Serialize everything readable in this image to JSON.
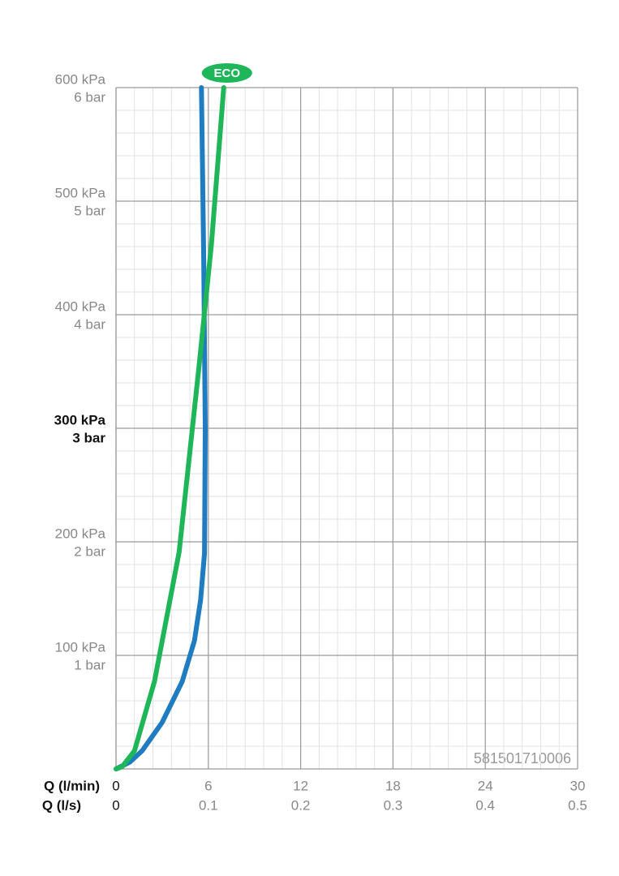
{
  "chart_data": {
    "type": "line",
    "xlabel": "Q (l/min)",
    "x2label": "Q (l/s)",
    "xlim": [
      0,
      30
    ],
    "xticks": [
      0,
      6,
      12,
      18,
      24,
      30
    ],
    "x2lim": [
      0,
      0.5
    ],
    "x2ticks": [
      0,
      0.1,
      0.2,
      0.3,
      0.4,
      0.5
    ],
    "ylim": [
      0,
      600
    ],
    "yticks": [
      {
        "value": 100,
        "label": "100 kPa"
      },
      {
        "value": 200,
        "label": "200 kPa"
      },
      {
        "value": 300,
        "label": "300 kPa"
      },
      {
        "value": 400,
        "label": "400 kPa"
      },
      {
        "value": 500,
        "label": "500 kPa"
      },
      {
        "value": 600,
        "label": "600 kPa"
      }
    ],
    "y2lim": [
      0,
      6
    ],
    "y2ticks": [
      {
        "value": 1,
        "label": "1 bar"
      },
      {
        "value": 2,
        "label": "2 bar"
      },
      {
        "value": 3,
        "label": "3 bar"
      },
      {
        "value": 4,
        "label": "4 bar"
      },
      {
        "value": 5,
        "label": "5 bar"
      },
      {
        "value": 6,
        "label": "6 bar"
      }
    ],
    "bold_ytick": 300,
    "grid": true,
    "annotation": "581501710006",
    "series": [
      {
        "color": "#1f7cc1",
        "x": [
          0,
          0.9,
          1.7,
          3.0,
          4.3,
          5.1,
          5.5,
          5.75,
          5.8,
          5.7,
          5.55
        ],
        "values": [
          0,
          6,
          16,
          41,
          77,
          113,
          149,
          190,
          300,
          450,
          600
        ]
      },
      {
        "color": "#1fb65a",
        "badge": "ECO",
        "x": [
          0,
          0.4,
          1.2,
          2.5,
          4.1,
          5.4,
          6.2,
          7.0
        ],
        "values": [
          0,
          2,
          16,
          77,
          191,
          355,
          462,
          600
        ]
      }
    ]
  }
}
